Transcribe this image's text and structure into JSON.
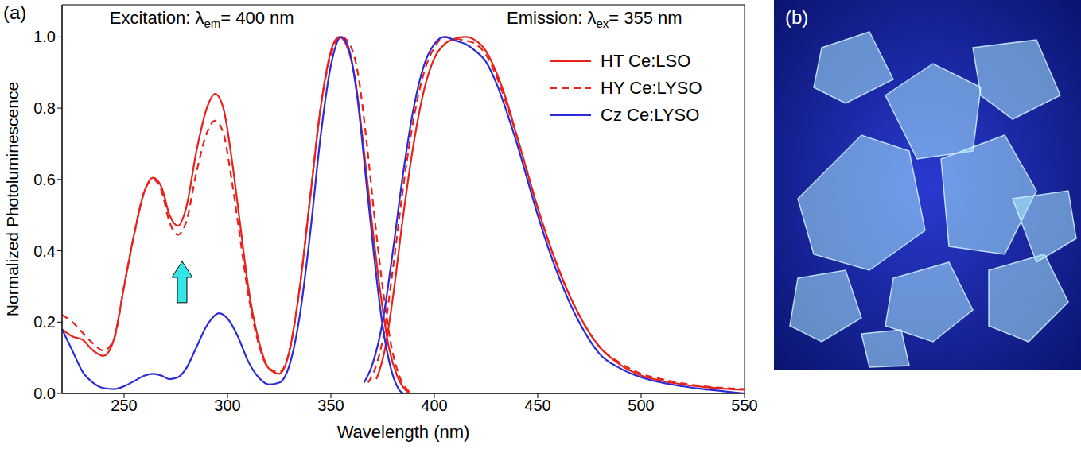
{
  "chart_data": {
    "type": "line",
    "panel_label": "(a)",
    "x_label": "Wavelength (nm)",
    "y_label": "Normalized Photoluminescence",
    "annotations": [
      {
        "prefix": "Excitation: λ",
        "subscript": "em",
        "suffix": "= 400 nm"
      },
      {
        "prefix": "Emission: λ",
        "subscript": "ex",
        "suffix": "= 355 nm"
      }
    ],
    "xlim": [
      220,
      550
    ],
    "xticks": [
      250,
      300,
      350,
      400,
      450,
      500,
      550
    ],
    "ylim": [
      0,
      1.09
    ],
    "yticks": [
      {
        "value": 0,
        "label": "0.0"
      },
      {
        "value": 0.2,
        "label": "0.2"
      },
      {
        "value": 0.4,
        "label": "0.4"
      },
      {
        "value": 0.6,
        "label": "0.6"
      },
      {
        "value": 0.8,
        "label": "0.8"
      },
      {
        "value": 1.0,
        "label": "1.0"
      }
    ],
    "grid": false,
    "legend": "upper right",
    "series": [
      {
        "name": "HT Ce:LSO",
        "color": "#e8211a",
        "line_style": "solid",
        "x": [
          220,
          225,
          230,
          235,
          240,
          245,
          250,
          255,
          260,
          264,
          268,
          272,
          276,
          280,
          285,
          290,
          294,
          298,
          302,
          306,
          310,
          315,
          320,
          325,
          330,
          335,
          340,
          345,
          350,
          354,
          358,
          362,
          366,
          370,
          374,
          378,
          382,
          386,
          388,
          372,
          372,
          376,
          380,
          385,
          390,
          395,
          400,
          405,
          410,
          415,
          420,
          425,
          430,
          435,
          440,
          445,
          450,
          455,
          460,
          465,
          470,
          475,
          480,
          490,
          500,
          510,
          520,
          530,
          540,
          550
        ],
        "values": [
          0.18,
          0.16,
          0.15,
          0.12,
          0.105,
          0.15,
          0.3,
          0.45,
          0.57,
          0.605,
          0.58,
          0.5,
          0.47,
          0.52,
          0.68,
          0.8,
          0.84,
          0.8,
          0.66,
          0.48,
          0.3,
          0.15,
          0.07,
          0.055,
          0.12,
          0.3,
          0.55,
          0.8,
          0.96,
          1.0,
          0.97,
          0.87,
          0.68,
          0.47,
          0.28,
          0.13,
          0.05,
          0.01,
          0,
          null,
          0.04,
          0.12,
          0.27,
          0.5,
          0.7,
          0.85,
          0.94,
          0.98,
          0.995,
          1.0,
          0.99,
          0.96,
          0.9,
          0.82,
          0.72,
          0.62,
          0.52,
          0.43,
          0.35,
          0.28,
          0.22,
          0.17,
          0.13,
          0.08,
          0.05,
          0.035,
          0.025,
          0.018,
          0.013,
          0.01
        ]
      },
      {
        "name": "HY Ce:LYSO",
        "color": "#e8211a",
        "line_style": "dashed",
        "x": [
          220,
          225,
          230,
          235,
          240,
          245,
          250,
          255,
          260,
          264,
          268,
          272,
          276,
          280,
          285,
          290,
          294,
          298,
          302,
          306,
          310,
          315,
          320,
          325,
          330,
          335,
          340,
          345,
          350,
          355,
          359,
          363,
          367,
          371,
          375,
          379,
          383,
          387,
          389,
          368,
          368,
          372,
          376,
          380,
          385,
          390,
          395,
          400,
          405,
          410,
          415,
          420,
          425,
          430,
          435,
          440,
          445,
          450,
          455,
          460,
          465,
          470,
          475,
          480,
          490,
          500,
          510,
          520,
          530,
          540,
          550
        ],
        "values": [
          0.22,
          0.2,
          0.17,
          0.14,
          0.12,
          0.15,
          0.3,
          0.45,
          0.57,
          0.6,
          0.57,
          0.48,
          0.445,
          0.48,
          0.62,
          0.73,
          0.765,
          0.73,
          0.6,
          0.44,
          0.28,
          0.14,
          0.07,
          0.06,
          0.12,
          0.3,
          0.55,
          0.8,
          0.95,
          1.0,
          0.98,
          0.9,
          0.72,
          0.5,
          0.3,
          0.14,
          0.05,
          0.01,
          0,
          null,
          0.03,
          0.08,
          0.18,
          0.35,
          0.58,
          0.77,
          0.9,
          0.97,
          1.0,
          0.995,
          0.99,
          0.98,
          0.95,
          0.89,
          0.81,
          0.72,
          0.62,
          0.52,
          0.43,
          0.35,
          0.28,
          0.22,
          0.17,
          0.13,
          0.085,
          0.055,
          0.04,
          0.028,
          0.02,
          0.015,
          0.012
        ]
      },
      {
        "name": "Cz Ce:LYSO",
        "color": "#2b2bd9",
        "line_style": "solid",
        "x": [
          220,
          225,
          230,
          235,
          240,
          245,
          250,
          255,
          260,
          264,
          268,
          272,
          276,
          280,
          285,
          290,
          296,
          300,
          305,
          310,
          315,
          320,
          325,
          330,
          335,
          340,
          345,
          350,
          355,
          359,
          363,
          367,
          371,
          375,
          379,
          383,
          385,
          366,
          366,
          370,
          375,
          380,
          385,
          390,
          395,
          400,
          405,
          410,
          415,
          420,
          425,
          430,
          435,
          440,
          445,
          450,
          455,
          460,
          465,
          470,
          475,
          480,
          490,
          500,
          510,
          520,
          530,
          540,
          550
        ],
        "values": [
          0.18,
          0.12,
          0.06,
          0.03,
          0.015,
          0.012,
          0.02,
          0.035,
          0.05,
          0.055,
          0.05,
          0.04,
          0.045,
          0.07,
          0.13,
          0.19,
          0.225,
          0.21,
          0.16,
          0.09,
          0.045,
          0.025,
          0.03,
          0.08,
          0.22,
          0.45,
          0.72,
          0.92,
          1.0,
          0.96,
          0.82,
          0.6,
          0.38,
          0.19,
          0.07,
          0.01,
          0,
          null,
          0.03,
          0.08,
          0.2,
          0.4,
          0.62,
          0.8,
          0.92,
          0.98,
          1.0,
          0.99,
          0.98,
          0.96,
          0.93,
          0.87,
          0.79,
          0.7,
          0.6,
          0.5,
          0.41,
          0.33,
          0.26,
          0.2,
          0.15,
          0.11,
          0.07,
          0.045,
          0.03,
          0.02,
          0.012,
          0.006,
          0
        ]
      }
    ]
  },
  "photo": {
    "panel_label": "(b)"
  }
}
